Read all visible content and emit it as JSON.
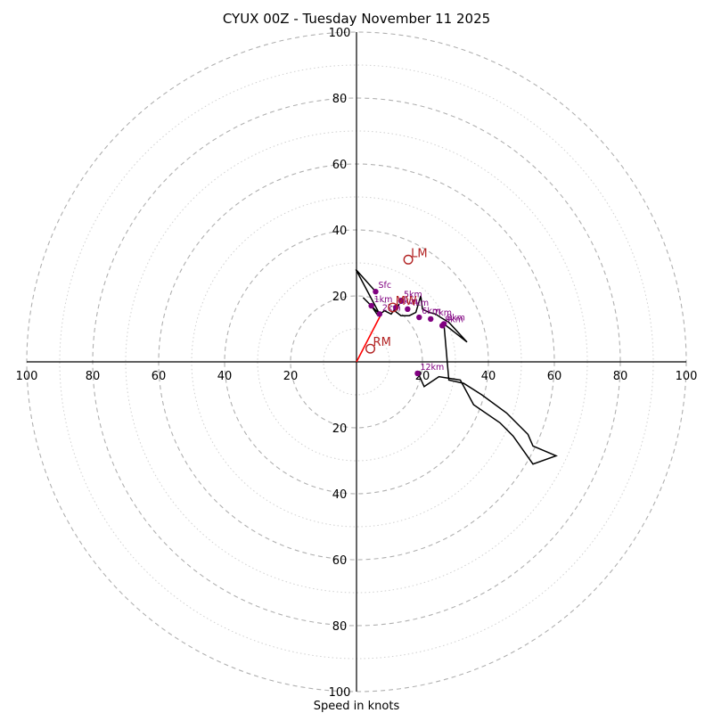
{
  "chart_data": {
    "type": "hodograph",
    "title": "CYUX 00Z - Tuesday November 11 2025",
    "xlabel": "Speed in knots",
    "ring_major_knots": [
      20,
      40,
      60,
      80,
      100
    ],
    "ring_minor_knots": [
      10,
      30,
      50,
      70,
      90
    ],
    "axis_range_knots": [
      -100,
      100
    ],
    "tick_labels": {
      "left": [
        "100",
        "80",
        "60",
        "40",
        "20"
      ],
      "right": [
        "20",
        "40",
        "60",
        "80",
        "100"
      ],
      "up": [
        "20",
        "40",
        "60",
        "80",
        "100"
      ],
      "down": [
        "20",
        "40",
        "60",
        "80",
        "100"
      ]
    },
    "wind_profile": {
      "units": "knots",
      "points": [
        [
          5.8,
          21.3
        ],
        [
          -0.2,
          28.0
        ],
        [
          7.0,
          14.5
        ],
        [
          2.0,
          19.5
        ],
        [
          4.5,
          17.0
        ],
        [
          6.5,
          14.0
        ],
        [
          8.5,
          15.5
        ],
        [
          10.5,
          14.5
        ],
        [
          12.0,
          16.5
        ],
        [
          13.0,
          17.5
        ],
        [
          11.5,
          15.5
        ],
        [
          13.5,
          14.0
        ],
        [
          16.0,
          14.0
        ],
        [
          18.0,
          15.0
        ],
        [
          19.5,
          20.0
        ],
        [
          20.0,
          16.0
        ],
        [
          22.0,
          15.0
        ],
        [
          24.0,
          14.5
        ],
        [
          25.5,
          13.5
        ],
        [
          28.0,
          12.0
        ],
        [
          33.5,
          6.0
        ],
        [
          26.5,
          11.5
        ],
        [
          28.0,
          -5.5
        ],
        [
          32.5,
          -6.5
        ],
        [
          38.0,
          -10.0
        ],
        [
          45.5,
          -15.5
        ],
        [
          52.0,
          -22.0
        ],
        [
          53.5,
          -25.5
        ],
        [
          60.5,
          -28.5
        ],
        [
          53.5,
          -31.0
        ],
        [
          47.5,
          -22.5
        ],
        [
          43.5,
          -18.5
        ],
        [
          35.5,
          -13.0
        ],
        [
          31.5,
          -5.5
        ],
        [
          25.0,
          -4.5
        ],
        [
          20.5,
          -7.5
        ],
        [
          18.5,
          -3.0
        ]
      ]
    },
    "height_markers": [
      {
        "label": "Sfc",
        "u": 5.8,
        "v": 21.3
      },
      {
        "label": "1km",
        "u": 4.5,
        "v": 17.0
      },
      {
        "label": "2km",
        "u": 7.0,
        "v": 14.5
      },
      {
        "label": "3km",
        "u": 12.0,
        "v": 16.5
      },
      {
        "label": "4km",
        "u": 15.5,
        "v": 16.0
      },
      {
        "label": "5km",
        "u": 13.5,
        "v": 18.5
      },
      {
        "label": "6km",
        "u": 19.0,
        "v": 13.5
      },
      {
        "label": "7km",
        "u": 22.5,
        "v": 13.0
      },
      {
        "label": "8km",
        "u": 26.5,
        "v": 11.5
      },
      {
        "label": "9km",
        "u": 26.0,
        "v": 11.0
      },
      {
        "label": "12km",
        "u": 18.5,
        "v": -3.5
      }
    ],
    "storm_motion": [
      {
        "label": "RM",
        "u": 4.2,
        "v": 4.0
      },
      {
        "label": "LM",
        "u": 15.7,
        "v": 31.0
      },
      {
        "label": "MW",
        "u": 11.0,
        "v": 16.5
      }
    ],
    "storm_motion_vector": {
      "from": [
        0,
        0
      ],
      "to": [
        7.5,
        14.5
      ]
    },
    "colors": {
      "profile": "#000000",
      "markers": "#800080",
      "storm_motion": "#b22222",
      "vector": "#ff0000",
      "ring_major": "#b0b0b0",
      "ring_minor": "#d0d0d0",
      "axes": "#000000"
    }
  }
}
